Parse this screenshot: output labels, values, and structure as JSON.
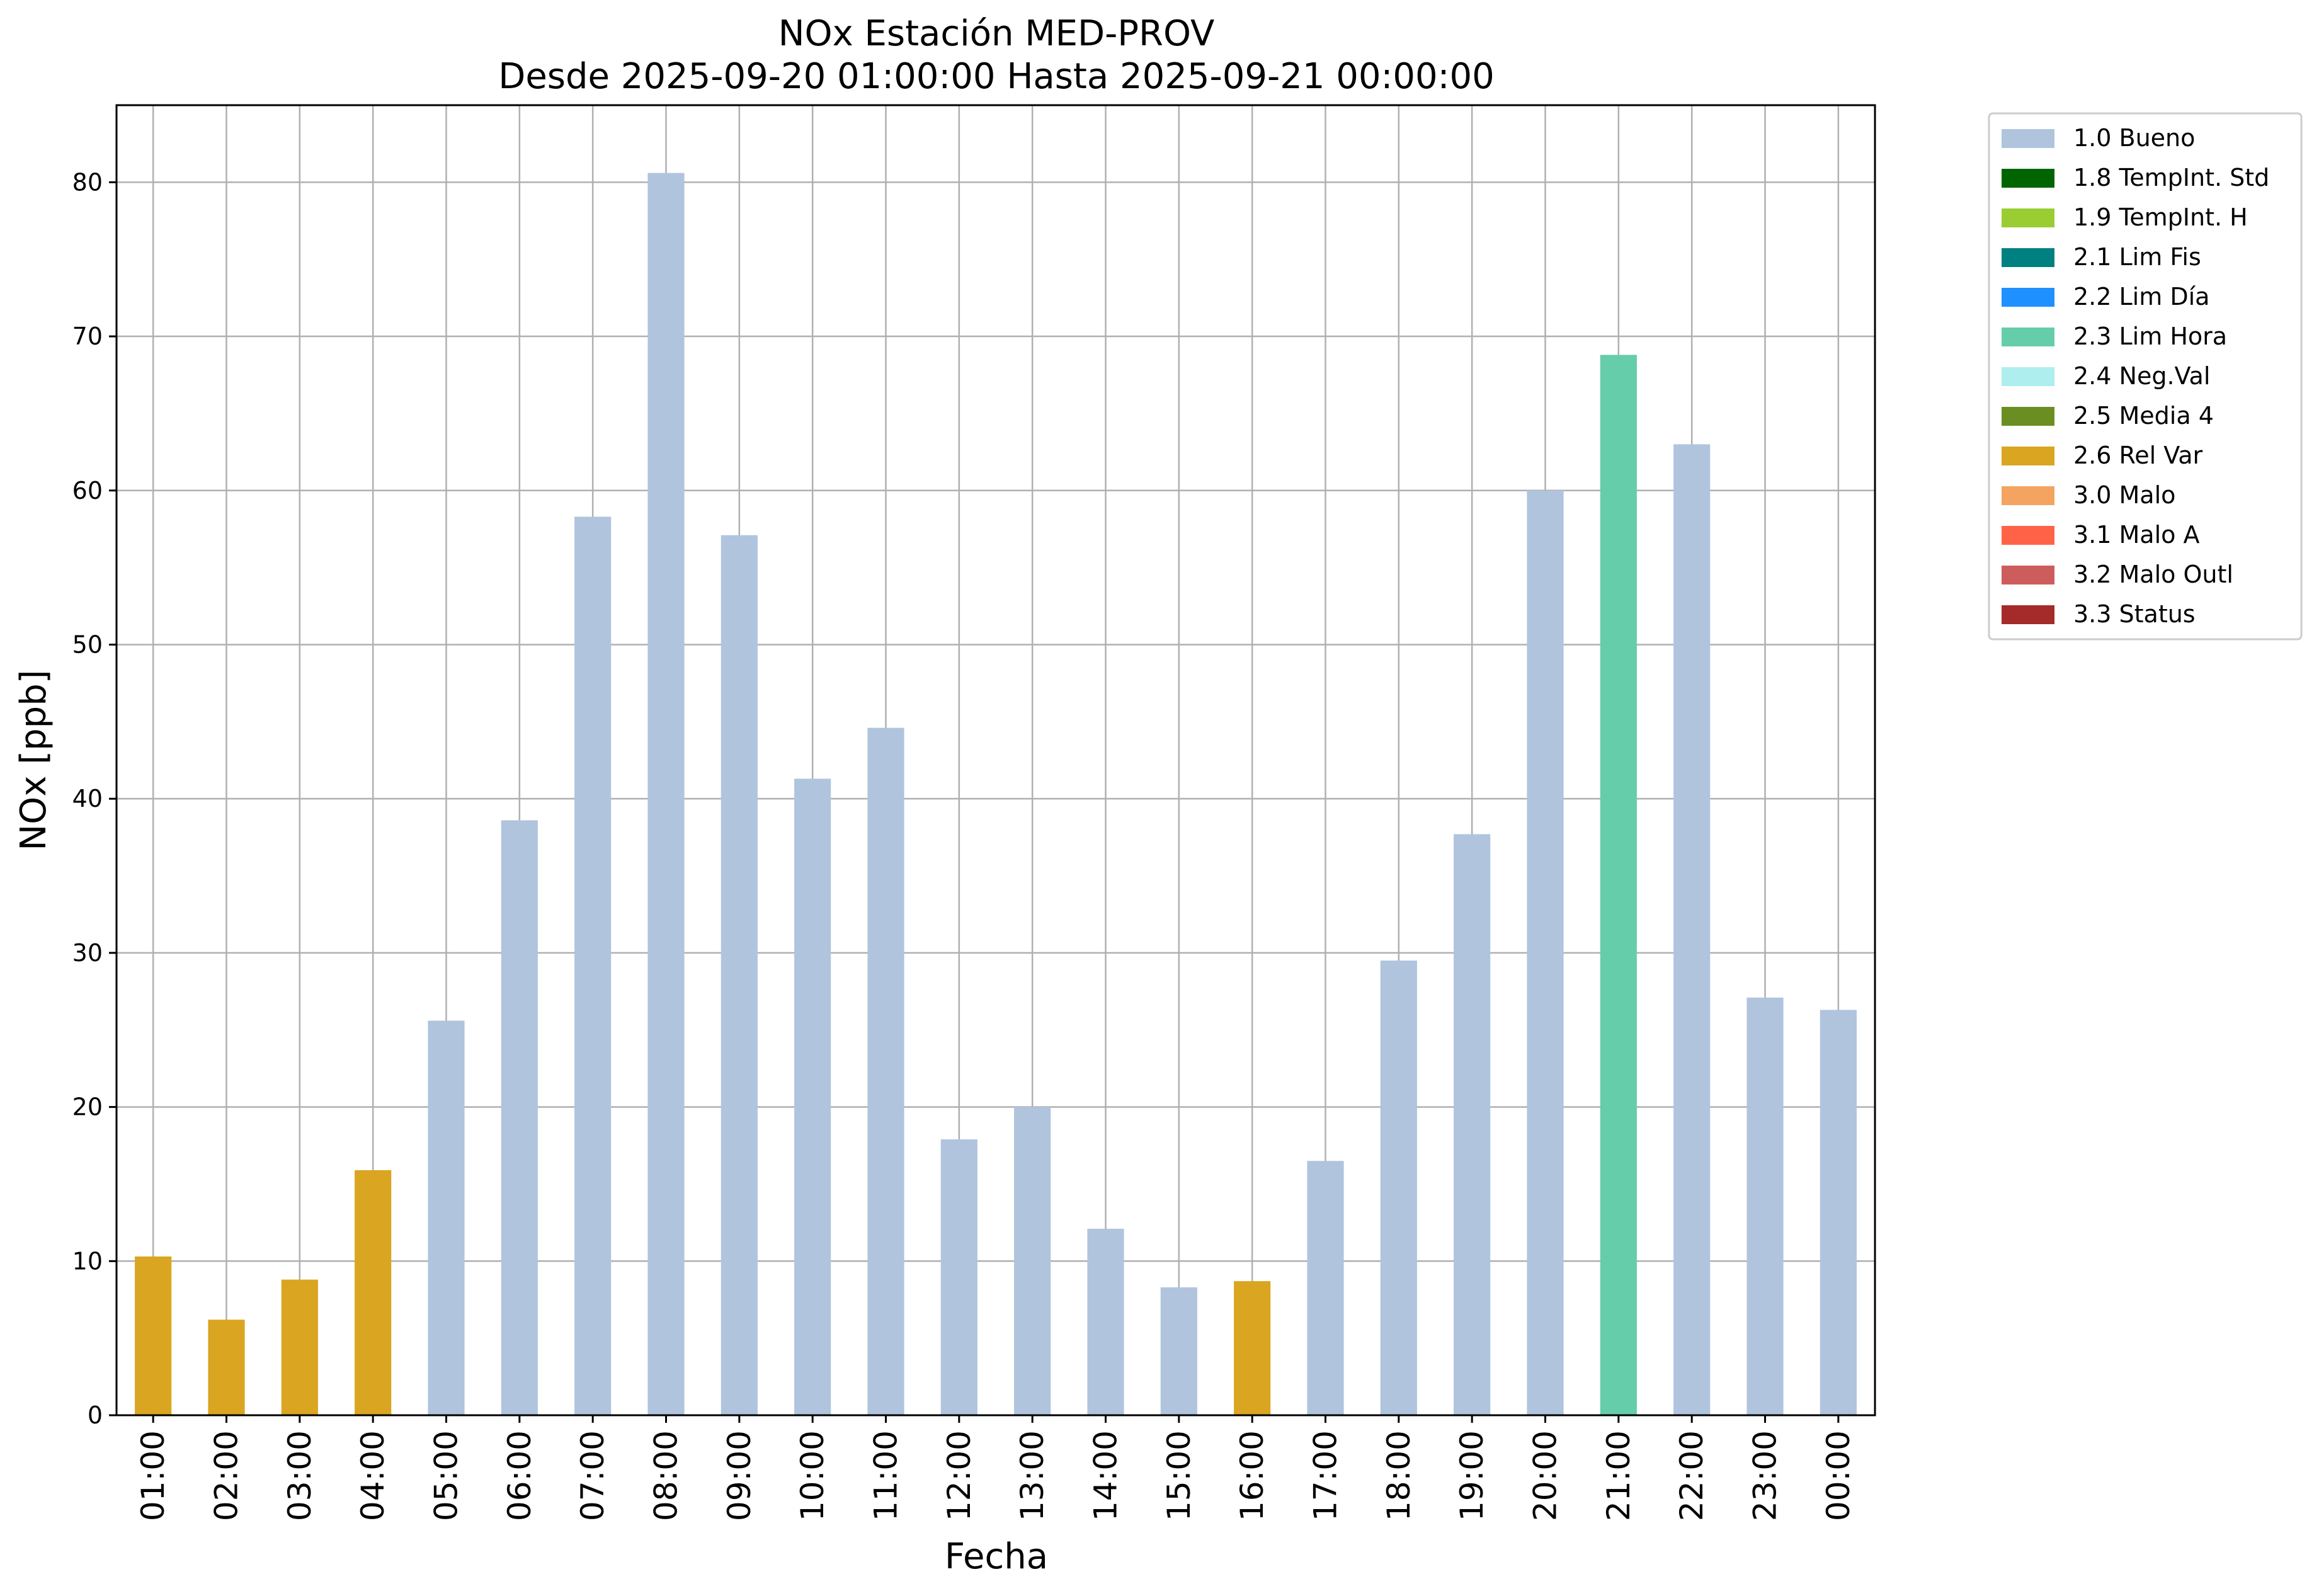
{
  "chart_data": {
    "type": "bar",
    "title": "NOx Estación MED-PROV",
    "subtitle": "Desde 2025-09-20 01:00:00 Hasta 2025-09-21 00:00:00",
    "xlabel": "Fecha",
    "ylabel": "NOx [ppb]",
    "ylim": [
      0,
      85
    ],
    "yticks": [
      0,
      10,
      20,
      30,
      40,
      50,
      60,
      70,
      80
    ],
    "grid": true,
    "legend_position": "outside top-right",
    "categories": [
      "01:00",
      "02:00",
      "03:00",
      "04:00",
      "05:00",
      "06:00",
      "07:00",
      "08:00",
      "09:00",
      "10:00",
      "11:00",
      "12:00",
      "13:00",
      "14:00",
      "15:00",
      "16:00",
      "17:00",
      "18:00",
      "19:00",
      "20:00",
      "21:00",
      "22:00",
      "23:00",
      "00:00"
    ],
    "values": [
      10.3,
      6.2,
      8.8,
      15.9,
      25.6,
      38.6,
      58.3,
      80.6,
      57.1,
      41.3,
      44.6,
      17.9,
      20.0,
      12.1,
      8.3,
      8.7,
      16.5,
      29.5,
      37.7,
      60.0,
      68.8,
      63.0,
      27.1,
      26.3
    ],
    "flags": [
      "2.6 Rel Var",
      "2.6 Rel Var",
      "2.6 Rel Var",
      "2.6 Rel Var",
      "1.0 Bueno",
      "1.0 Bueno",
      "1.0 Bueno",
      "1.0 Bueno",
      "1.0 Bueno",
      "1.0 Bueno",
      "1.0 Bueno",
      "1.0 Bueno",
      "1.0 Bueno",
      "1.0 Bueno",
      "1.0 Bueno",
      "2.6 Rel Var",
      "1.0 Bueno",
      "1.0 Bueno",
      "1.0 Bueno",
      "1.0 Bueno",
      "2.3 Lim Hora",
      "1.0 Bueno",
      "1.0 Bueno",
      "1.0 Bueno"
    ],
    "legend": [
      {
        "label": "1.0 Bueno",
        "color": "#b0c4de"
      },
      {
        "label": "1.8 TempInt. Std",
        "color": "#006400"
      },
      {
        "label": "1.9 TempInt. H",
        "color": "#9acd32"
      },
      {
        "label": "2.1 Lim Fis",
        "color": "#008080"
      },
      {
        "label": "2.2 Lim Día",
        "color": "#1e90ff"
      },
      {
        "label": "2.3 Lim Hora",
        "color": "#66cdaa"
      },
      {
        "label": "2.4 Neg.Val",
        "color": "#afeeee"
      },
      {
        "label": "2.5 Media 4",
        "color": "#6b8e23"
      },
      {
        "label": "2.6 Rel Var",
        "color": "#daa520"
      },
      {
        "label": "3.0 Malo",
        "color": "#f4a460"
      },
      {
        "label": "3.1 Malo A",
        "color": "#ff6347"
      },
      {
        "label": "3.2 Malo Outl",
        "color": "#cd5c5c"
      },
      {
        "label": "3.3 Status",
        "color": "#a52a2a"
      }
    ]
  }
}
